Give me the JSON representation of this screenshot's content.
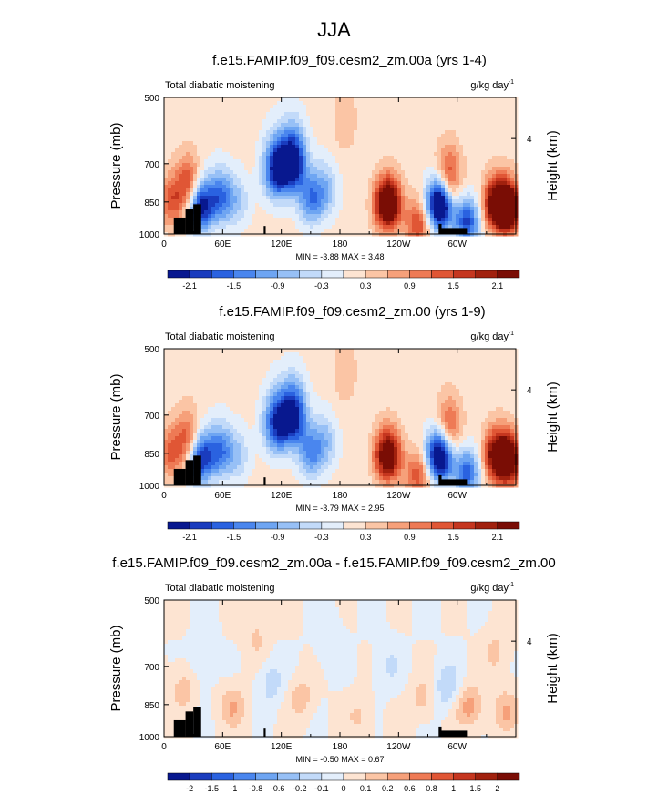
{
  "figure": {
    "title": "JJA"
  },
  "chart_data": [
    {
      "type": "heatmap",
      "title": "f.e15.FAMIP.f09_f09.cesm2_zm.00a (yrs 1-4)",
      "left_label": "Total diabatic moistening",
      "units": "g/kg day",
      "units_exp": "-1",
      "ylabel": "Pressure (mb)",
      "ylabel_right": "Height (km)",
      "x_ticks": [
        "0",
        "60E",
        "120E",
        "180",
        "120W",
        "60W"
      ],
      "x_tick_values": [
        0,
        60,
        120,
        180,
        240,
        300
      ],
      "xlim": [
        0,
        360
      ],
      "y_ticks": [
        "500",
        "700",
        "850",
        "1000"
      ],
      "y_tick_values": [
        500,
        700,
        850,
        1000
      ],
      "ylim": [
        500,
        1000
      ],
      "y_right_ticks": [
        "4"
      ],
      "y_right_tick_values": [
        616
      ],
      "stats": "MIN =  -3.88  MAX =   3.48",
      "colorbar_labels": [
        "-2.1",
        "-1.5",
        "-0.9",
        "-0.3",
        "0.3",
        "0.9",
        "1.5",
        "2.1"
      ],
      "features": [
        {
          "x": 7,
          "p": 850,
          "v": 1.2
        },
        {
          "x": 25,
          "p": 780,
          "v": 1.5
        },
        {
          "x": 37,
          "p": 870,
          "v": -2.5
        },
        {
          "x": 57,
          "p": 830,
          "v": -1.6
        },
        {
          "x": 75,
          "p": 850,
          "v": -0.7
        },
        {
          "x": 115,
          "p": 720,
          "v": -2.4
        },
        {
          "x": 132,
          "p": 690,
          "v": -2.7
        },
        {
          "x": 150,
          "p": 840,
          "v": -1.4
        },
        {
          "x": 165,
          "p": 800,
          "v": -0.9
        },
        {
          "x": 185,
          "p": 560,
          "v": 0.4
        },
        {
          "x": 229,
          "p": 860,
          "v": 3.3
        },
        {
          "x": 260,
          "p": 950,
          "v": 1.4
        },
        {
          "x": 282,
          "p": 860,
          "v": -3.5
        },
        {
          "x": 291,
          "p": 750,
          "v": 1.6
        },
        {
          "x": 310,
          "p": 940,
          "v": -2.0
        },
        {
          "x": 340,
          "p": 860,
          "v": 2.5
        },
        {
          "x": 353,
          "p": 880,
          "v": 2.9
        }
      ]
    },
    {
      "type": "heatmap",
      "title": "f.e15.FAMIP.f09_f09.cesm2_zm.00 (yrs 1-9)",
      "left_label": "Total diabatic moistening",
      "units": "g/kg day",
      "units_exp": "-1",
      "ylabel": "Pressure (mb)",
      "ylabel_right": "Height (km)",
      "x_ticks": [
        "0",
        "60E",
        "120E",
        "180",
        "120W",
        "60W"
      ],
      "x_tick_values": [
        0,
        60,
        120,
        180,
        240,
        300
      ],
      "xlim": [
        0,
        360
      ],
      "y_ticks": [
        "500",
        "700",
        "850",
        "1000"
      ],
      "y_tick_values": [
        500,
        700,
        850,
        1000
      ],
      "ylim": [
        500,
        1000
      ],
      "y_right_ticks": [
        "4"
      ],
      "y_right_tick_values": [
        616
      ],
      "stats": "MIN =  -3.79  MAX =   2.95",
      "colorbar_labels": [
        "-2.1",
        "-1.5",
        "-0.9",
        "-0.3",
        "0.3",
        "0.9",
        "1.5",
        "2.1"
      ],
      "features": [
        {
          "x": 7,
          "p": 850,
          "v": 1.1
        },
        {
          "x": 25,
          "p": 790,
          "v": 1.3
        },
        {
          "x": 37,
          "p": 870,
          "v": -2.3
        },
        {
          "x": 57,
          "p": 840,
          "v": -1.5
        },
        {
          "x": 75,
          "p": 860,
          "v": -0.7
        },
        {
          "x": 115,
          "p": 730,
          "v": -2.1
        },
        {
          "x": 132,
          "p": 700,
          "v": -2.5
        },
        {
          "x": 150,
          "p": 850,
          "v": -1.3
        },
        {
          "x": 165,
          "p": 800,
          "v": -0.8
        },
        {
          "x": 185,
          "p": 560,
          "v": 0.4
        },
        {
          "x": 229,
          "p": 860,
          "v": 2.8
        },
        {
          "x": 260,
          "p": 950,
          "v": 1.3
        },
        {
          "x": 282,
          "p": 860,
          "v": -3.3
        },
        {
          "x": 291,
          "p": 750,
          "v": 1.4
        },
        {
          "x": 310,
          "p": 940,
          "v": -1.8
        },
        {
          "x": 340,
          "p": 860,
          "v": 2.2
        },
        {
          "x": 353,
          "p": 880,
          "v": 2.6
        }
      ]
    },
    {
      "type": "heatmap",
      "title": "f.e15.FAMIP.f09_f09.cesm2_zm.00a - f.e15.FAMIP.f09_f09.cesm2_zm.00",
      "left_label": "Total diabatic moistening",
      "units": "g/kg day",
      "units_exp": "-1",
      "ylabel": "Pressure (mb)",
      "ylabel_right": "Height (km)",
      "x_ticks": [
        "0",
        "60E",
        "120E",
        "180",
        "120W",
        "60W"
      ],
      "x_tick_values": [
        0,
        60,
        120,
        180,
        240,
        300
      ],
      "xlim": [
        0,
        360
      ],
      "y_ticks": [
        "500",
        "700",
        "850",
        "1000"
      ],
      "y_tick_values": [
        500,
        700,
        850,
        1000
      ],
      "ylim": [
        500,
        1000
      ],
      "y_right_ticks": [
        "4"
      ],
      "y_right_tick_values": [
        616
      ],
      "stats": "MIN =  -0.50  MAX =   0.67",
      "colorbar_labels": [
        "-2",
        "-1.5",
        "-1",
        "-0.8",
        "-0.6",
        "-0.2",
        "-0.1",
        "0",
        "0.1",
        "0.2",
        "0.6",
        "0.8",
        "1",
        "1.5",
        "2"
      ],
      "features": [
        {
          "x": 20,
          "p": 780,
          "v": 0.15
        },
        {
          "x": 40,
          "p": 680,
          "v": -0.12
        },
        {
          "x": 70,
          "p": 860,
          "v": 0.2
        },
        {
          "x": 95,
          "p": 600,
          "v": 0.12
        },
        {
          "x": 110,
          "p": 760,
          "v": -0.15
        },
        {
          "x": 140,
          "p": 820,
          "v": 0.15
        },
        {
          "x": 170,
          "p": 620,
          "v": -0.1
        },
        {
          "x": 200,
          "p": 900,
          "v": 0.12
        },
        {
          "x": 230,
          "p": 700,
          "v": -0.1
        },
        {
          "x": 265,
          "p": 820,
          "v": 0.15
        },
        {
          "x": 290,
          "p": 780,
          "v": -0.2
        },
        {
          "x": 312,
          "p": 860,
          "v": 0.25
        },
        {
          "x": 340,
          "p": 650,
          "v": 0.12
        },
        {
          "x": 350,
          "p": 880,
          "v": 0.2
        }
      ]
    }
  ],
  "colors": {
    "palette": [
      "#08188f",
      "#1a3cbe",
      "#2a62e0",
      "#4a86ee",
      "#6ea5f2",
      "#97c0f6",
      "#c2daf9",
      "#e3eefb",
      "#fde4d2",
      "#fbc5a5",
      "#f6a07a",
      "#ee7a55",
      "#e05635",
      "#c5361f",
      "#a1210e",
      "#7a0d05"
    ]
  }
}
